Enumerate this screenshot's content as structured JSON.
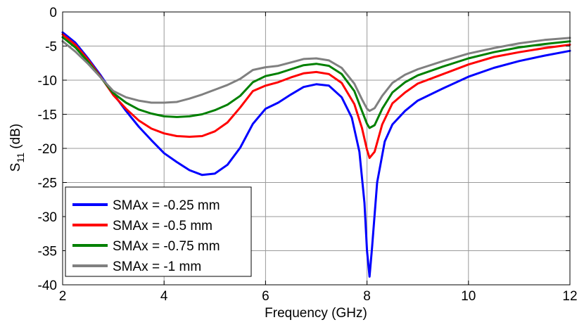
{
  "chart_data": {
    "type": "line",
    "title": "",
    "xlabel": "Frequency (GHz)",
    "ylabel_main": "S",
    "ylabel_sub": "11",
    "ylabel_tail": " (dB)",
    "xlim": [
      2,
      12
    ],
    "ylim": [
      -40,
      0
    ],
    "xticks": [
      2,
      4,
      6,
      8,
      10,
      12
    ],
    "yticks": [
      0,
      -5,
      -10,
      -15,
      -20,
      -25,
      -30,
      -35,
      -40
    ],
    "grid": true,
    "legend_position": "bottom-left",
    "series": [
      {
        "name": "SMAx = -0.25 mm",
        "color": "#0000ff",
        "points": [
          [
            2,
            -3.0
          ],
          [
            2.25,
            -4.5
          ],
          [
            2.5,
            -6.8
          ],
          [
            2.75,
            -9.3
          ],
          [
            3,
            -12.0
          ],
          [
            3.25,
            -14.5
          ],
          [
            3.5,
            -16.8
          ],
          [
            3.75,
            -18.8
          ],
          [
            4,
            -20.7
          ],
          [
            4.25,
            -22.0
          ],
          [
            4.5,
            -23.2
          ],
          [
            4.75,
            -23.9
          ],
          [
            5,
            -23.7
          ],
          [
            5.25,
            -22.4
          ],
          [
            5.5,
            -19.9
          ],
          [
            5.75,
            -16.4
          ],
          [
            6,
            -14.2
          ],
          [
            6.25,
            -13.3
          ],
          [
            6.5,
            -12.1
          ],
          [
            6.75,
            -11.0
          ],
          [
            7,
            -10.6
          ],
          [
            7.25,
            -10.8
          ],
          [
            7.5,
            -12.5
          ],
          [
            7.7,
            -15.5
          ],
          [
            7.85,
            -20.5
          ],
          [
            7.95,
            -28.0
          ],
          [
            8.0,
            -35.0
          ],
          [
            8.05,
            -38.8
          ],
          [
            8.1,
            -34.5
          ],
          [
            8.2,
            -25.0
          ],
          [
            8.35,
            -19.0
          ],
          [
            8.5,
            -16.5
          ],
          [
            8.75,
            -14.5
          ],
          [
            9,
            -13.0
          ],
          [
            9.5,
            -11.2
          ],
          [
            10,
            -9.5
          ],
          [
            10.5,
            -8.2
          ],
          [
            11,
            -7.2
          ],
          [
            11.5,
            -6.4
          ],
          [
            12,
            -5.7
          ]
        ]
      },
      {
        "name": "SMAx = -0.5 mm",
        "color": "#ff0000",
        "points": [
          [
            2,
            -3.3
          ],
          [
            2.25,
            -4.8
          ],
          [
            2.5,
            -7.0
          ],
          [
            2.75,
            -9.5
          ],
          [
            3,
            -12.2
          ],
          [
            3.25,
            -14.2
          ],
          [
            3.5,
            -15.9
          ],
          [
            3.75,
            -17.1
          ],
          [
            4,
            -17.8
          ],
          [
            4.25,
            -18.2
          ],
          [
            4.5,
            -18.3
          ],
          [
            4.75,
            -18.2
          ],
          [
            5,
            -17.5
          ],
          [
            5.25,
            -16.2
          ],
          [
            5.5,
            -14.0
          ],
          [
            5.75,
            -11.6
          ],
          [
            6,
            -10.8
          ],
          [
            6.25,
            -10.3
          ],
          [
            6.5,
            -9.6
          ],
          [
            6.75,
            -9.0
          ],
          [
            7,
            -8.8
          ],
          [
            7.25,
            -9.1
          ],
          [
            7.5,
            -10.4
          ],
          [
            7.75,
            -13.5
          ],
          [
            7.9,
            -17.0
          ],
          [
            8.0,
            -20.2
          ],
          [
            8.05,
            -21.4
          ],
          [
            8.15,
            -20.5
          ],
          [
            8.3,
            -16.5
          ],
          [
            8.5,
            -13.4
          ],
          [
            8.75,
            -11.8
          ],
          [
            9,
            -10.5
          ],
          [
            9.5,
            -9.1
          ],
          [
            10,
            -7.7
          ],
          [
            10.5,
            -6.6
          ],
          [
            11,
            -5.9
          ],
          [
            11.5,
            -5.3
          ],
          [
            12,
            -4.8
          ]
        ]
      },
      {
        "name": "SMAx = -0.75 mm",
        "color": "#008000",
        "points": [
          [
            2,
            -3.7
          ],
          [
            2.25,
            -5.2
          ],
          [
            2.5,
            -7.3
          ],
          [
            2.75,
            -9.6
          ],
          [
            3,
            -11.9
          ],
          [
            3.25,
            -13.3
          ],
          [
            3.5,
            -14.3
          ],
          [
            3.75,
            -14.9
          ],
          [
            4,
            -15.3
          ],
          [
            4.25,
            -15.4
          ],
          [
            4.5,
            -15.3
          ],
          [
            4.75,
            -15.0
          ],
          [
            5,
            -14.4
          ],
          [
            5.25,
            -13.6
          ],
          [
            5.5,
            -12.3
          ],
          [
            5.75,
            -10.3
          ],
          [
            6,
            -9.4
          ],
          [
            6.25,
            -9.0
          ],
          [
            6.5,
            -8.4
          ],
          [
            6.75,
            -7.8
          ],
          [
            7,
            -7.6
          ],
          [
            7.25,
            -7.9
          ],
          [
            7.5,
            -9.1
          ],
          [
            7.75,
            -11.6
          ],
          [
            7.9,
            -14.5
          ],
          [
            8.0,
            -16.4
          ],
          [
            8.05,
            -17.0
          ],
          [
            8.15,
            -16.6
          ],
          [
            8.3,
            -14.2
          ],
          [
            8.5,
            -11.8
          ],
          [
            8.75,
            -10.3
          ],
          [
            9,
            -9.3
          ],
          [
            9.5,
            -8.0
          ],
          [
            10,
            -6.8
          ],
          [
            10.5,
            -5.9
          ],
          [
            11,
            -5.2
          ],
          [
            11.5,
            -4.7
          ],
          [
            12,
            -4.3
          ]
        ]
      },
      {
        "name": "SMAx = -1 mm",
        "color": "#808080",
        "points": [
          [
            2,
            -4.3
          ],
          [
            2.25,
            -5.8
          ],
          [
            2.5,
            -7.6
          ],
          [
            2.75,
            -9.6
          ],
          [
            3,
            -11.6
          ],
          [
            3.25,
            -12.5
          ],
          [
            3.5,
            -13.0
          ],
          [
            3.75,
            -13.3
          ],
          [
            4,
            -13.3
          ],
          [
            4.25,
            -13.2
          ],
          [
            4.5,
            -12.7
          ],
          [
            4.75,
            -12.1
          ],
          [
            5,
            -11.4
          ],
          [
            5.25,
            -10.7
          ],
          [
            5.5,
            -9.8
          ],
          [
            5.75,
            -8.5
          ],
          [
            6,
            -8.1
          ],
          [
            6.25,
            -7.9
          ],
          [
            6.5,
            -7.4
          ],
          [
            6.75,
            -6.9
          ],
          [
            7,
            -6.8
          ],
          [
            7.25,
            -7.1
          ],
          [
            7.5,
            -8.2
          ],
          [
            7.75,
            -10.5
          ],
          [
            7.9,
            -12.8
          ],
          [
            8.0,
            -14.2
          ],
          [
            8.05,
            -14.5
          ],
          [
            8.15,
            -14.1
          ],
          [
            8.3,
            -12.3
          ],
          [
            8.5,
            -10.4
          ],
          [
            8.75,
            -9.2
          ],
          [
            9,
            -8.4
          ],
          [
            9.5,
            -7.2
          ],
          [
            10,
            -6.1
          ],
          [
            10.5,
            -5.3
          ],
          [
            11,
            -4.6
          ],
          [
            11.5,
            -4.1
          ],
          [
            12,
            -3.8
          ]
        ]
      }
    ]
  }
}
